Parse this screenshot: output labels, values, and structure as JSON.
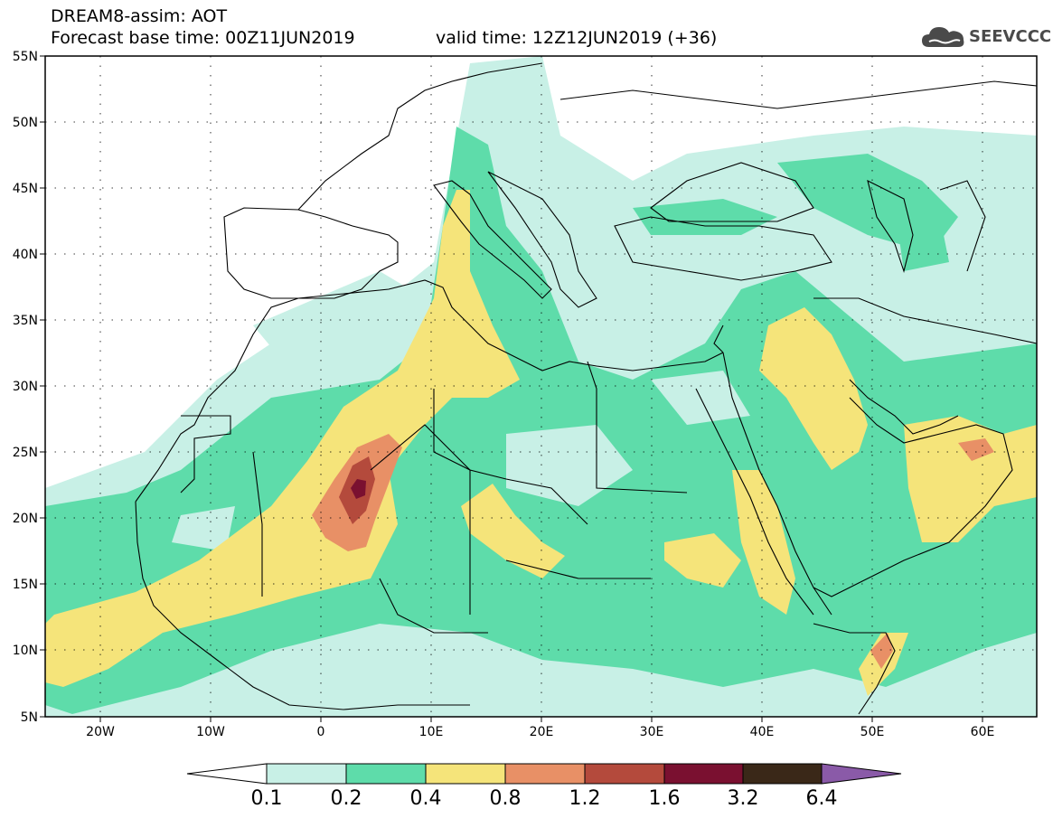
{
  "header": {
    "title": "DREAM8-assim: AOT",
    "base_time": "Forecast base time: 00Z11JUN2019",
    "valid_time": "valid time: 12Z12JUN2019 (+36)",
    "logo_text": "SEEVCCC"
  },
  "map": {
    "lat_labels": [
      "55N",
      "50N",
      "45N",
      "40N",
      "35N",
      "30N",
      "25N",
      "20N",
      "15N",
      "10N",
      "5N"
    ],
    "lon_labels": [
      "20W",
      "10W",
      "0",
      "10E",
      "20E",
      "30E",
      "40E",
      "50E",
      "60E"
    ],
    "lon_range": [
      -25,
      65
    ],
    "lat_range": [
      5,
      55
    ],
    "grid": "dotted"
  },
  "colorbar": {
    "labels": [
      "0.1",
      "0.2",
      "0.4",
      "0.8",
      "1.2",
      "1.6",
      "3.2",
      "6.4"
    ],
    "colors": [
      "#c8f0e6",
      "#5edcaa",
      "#f5e47a",
      "#e89066",
      "#b44a3c",
      "#7a1030",
      "#3a2818",
      "#8a5aa8"
    ],
    "under_color": "#ffffff"
  }
}
